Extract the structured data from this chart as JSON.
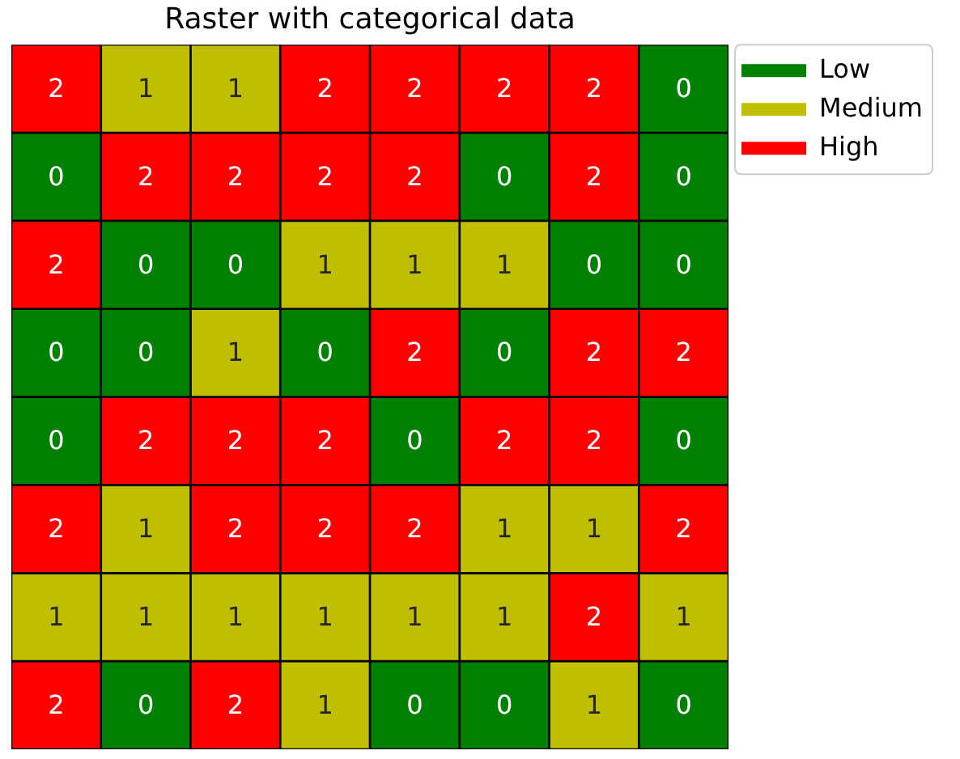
{
  "chart_data": {
    "type": "heatmap",
    "title": "Raster with categorical data",
    "categories": [
      null,
      null,
      null,
      null,
      null,
      null,
      null,
      null
    ],
    "y_categories": [
      null,
      null,
      null,
      null,
      null,
      null,
      null,
      null
    ],
    "cells": [
      [
        2,
        1,
        1,
        2,
        2,
        2,
        2,
        0
      ],
      [
        0,
        2,
        2,
        2,
        2,
        0,
        2,
        0
      ],
      [
        2,
        0,
        0,
        1,
        1,
        1,
        0,
        0
      ],
      [
        0,
        0,
        1,
        0,
        2,
        0,
        2,
        2
      ],
      [
        0,
        2,
        2,
        2,
        0,
        2,
        2,
        0
      ],
      [
        2,
        1,
        2,
        2,
        2,
        1,
        1,
        2
      ],
      [
        1,
        1,
        1,
        1,
        1,
        1,
        2,
        1
      ],
      [
        2,
        0,
        2,
        1,
        0,
        0,
        1,
        0
      ]
    ],
    "data_labels": true,
    "series": [
      {
        "name": "Low",
        "color": "#008000",
        "values": [
          null,
          null,
          null,
          null,
          null,
          null,
          null,
          null
        ]
      },
      {
        "name": "Medium",
        "color": "#bfbf00",
        "values": [
          null,
          null,
          null,
          null,
          null,
          null,
          null,
          null
        ]
      },
      {
        "name": "High",
        "color": "#ff0000",
        "values": [
          null,
          null,
          null,
          null,
          null,
          null,
          null,
          null
        ]
      }
    ],
    "legend": "top right"
  }
}
